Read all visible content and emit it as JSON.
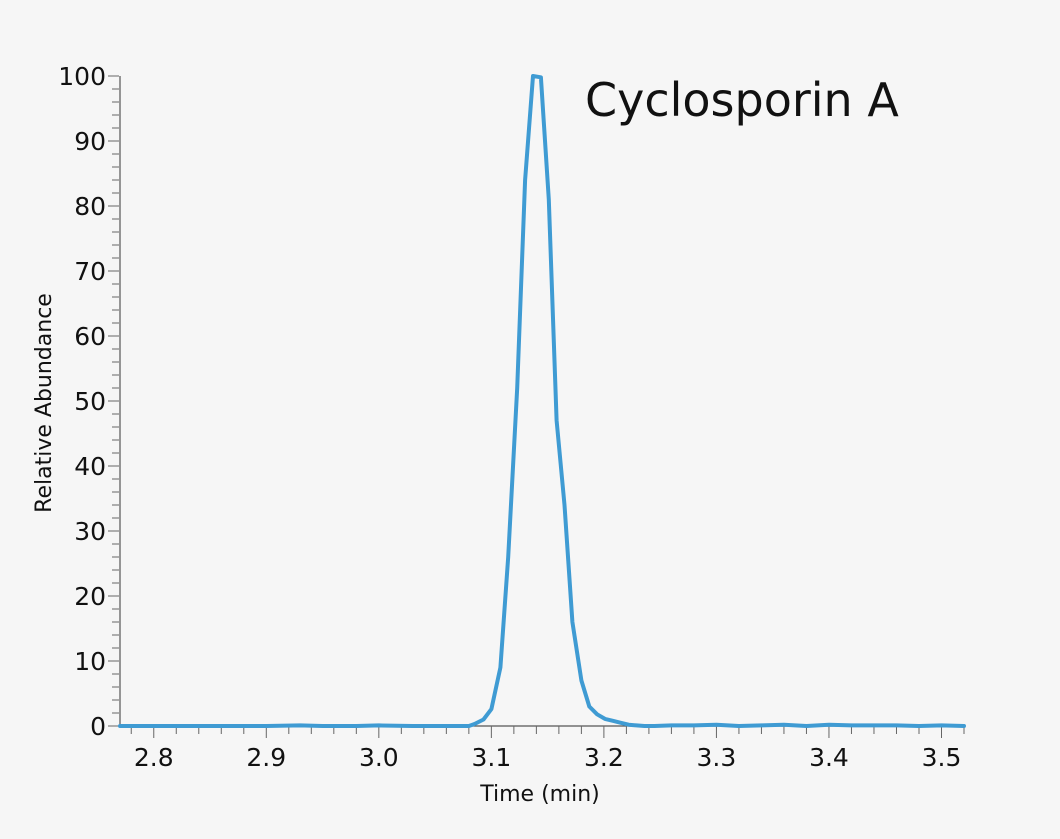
{
  "chart_data": {
    "type": "line",
    "title": "Cyclosporin A",
    "xlabel": "Time (min)",
    "ylabel": "Relative Abundance",
    "xlim": [
      2.77,
      3.52
    ],
    "ylim": [
      0,
      100
    ],
    "grid": false,
    "line_color": "#3f9bd3",
    "x_ticks": [
      "2.8",
      "2.9",
      "3.0",
      "3.1",
      "3.2",
      "3.3",
      "3.4",
      "3.5"
    ],
    "y_ticks": [
      "0",
      "10",
      "20",
      "30",
      "40",
      "50",
      "60",
      "70",
      "80",
      "90",
      "100"
    ],
    "series": [
      {
        "x": [
          2.77,
          2.8,
          2.85,
          2.9,
          2.93,
          2.95,
          2.98,
          3.0,
          3.03,
          3.06,
          3.08,
          3.085,
          3.093,
          3.1,
          3.108,
          3.115,
          3.123,
          3.13,
          3.137,
          3.144,
          3.151,
          3.158,
          3.165,
          3.172,
          3.18,
          3.187,
          3.194,
          3.201,
          3.208,
          3.215,
          3.222,
          3.229,
          3.236,
          3.245,
          3.26,
          3.28,
          3.3,
          3.32,
          3.34,
          3.36,
          3.38,
          3.4,
          3.42,
          3.44,
          3.46,
          3.48,
          3.5,
          3.52
        ],
        "y": [
          0,
          0,
          0,
          0,
          0.1,
          0,
          0,
          0.1,
          0,
          0,
          0,
          0.3,
          1,
          2.6,
          9,
          26,
          52,
          84,
          100,
          99.8,
          81,
          47,
          34,
          16,
          7,
          3,
          1.8,
          1.1,
          0.8,
          0.5,
          0.2,
          0.1,
          0,
          0,
          0.1,
          0.1,
          0.2,
          0,
          0.1,
          0.2,
          0,
          0.2,
          0.1,
          0.1,
          0.1,
          0,
          0.1,
          0
        ]
      }
    ]
  }
}
